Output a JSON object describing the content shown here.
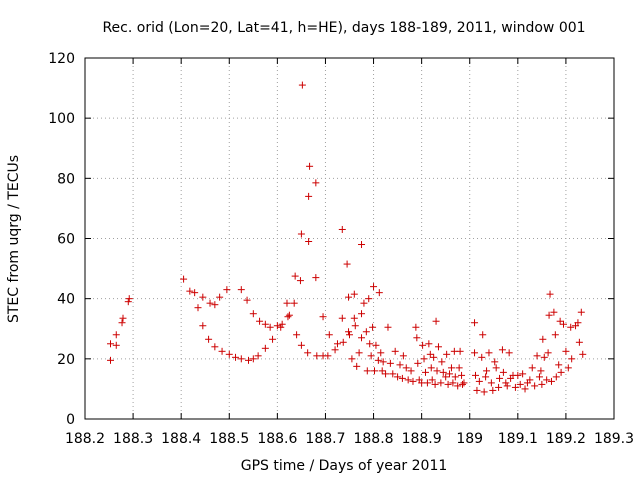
{
  "chart_data": {
    "type": "scatter",
    "title": "Rec. orid (Lon=20, Lat=41, h=HE), days 188-189, 2011, window 001",
    "xlabel": "GPS time / Days of year 2011",
    "ylabel": "STEC from uqrg / TECUs",
    "xlim": [
      188.2,
      189.3
    ],
    "ylim": [
      0,
      120
    ],
    "x_ticks": [
      188.2,
      188.3,
      188.4,
      188.5,
      188.6,
      188.7,
      188.8,
      188.9,
      189,
      189.1,
      189.2,
      189.3
    ],
    "x_tick_labels": [
      "188.2",
      "188.3",
      "188.4",
      "188.5",
      "188.6",
      "188.7",
      "188.8",
      "188.9",
      "189",
      "189.1",
      "189.2",
      "189.3"
    ],
    "y_ticks": [
      0,
      20,
      40,
      60,
      80,
      100,
      120
    ],
    "y_tick_labels": [
      "0",
      "20",
      "40",
      "60",
      "80",
      "100",
      "120"
    ],
    "grid": true,
    "marker": "+",
    "color": "#cc0000",
    "points": [
      [
        188.253,
        19.5
      ],
      [
        188.253,
        25
      ],
      [
        188.265,
        24.5
      ],
      [
        188.265,
        28
      ],
      [
        188.277,
        32
      ],
      [
        188.279,
        33.5
      ],
      [
        188.29,
        39
      ],
      [
        188.292,
        40
      ],
      [
        188.405,
        46.5
      ],
      [
        188.418,
        42.5
      ],
      [
        188.428,
        42
      ],
      [
        188.435,
        37
      ],
      [
        188.445,
        40.5
      ],
      [
        188.445,
        31
      ],
      [
        188.457,
        26.5
      ],
      [
        188.46,
        38.5
      ],
      [
        188.47,
        38
      ],
      [
        188.47,
        24
      ],
      [
        188.48,
        40.5
      ],
      [
        188.485,
        22.5
      ],
      [
        188.495,
        43
      ],
      [
        188.5,
        21.5
      ],
      [
        188.513,
        20.5
      ],
      [
        188.525,
        43
      ],
      [
        188.525,
        20
      ],
      [
        188.537,
        39.5
      ],
      [
        188.54,
        19.5
      ],
      [
        188.55,
        20
      ],
      [
        188.55,
        35
      ],
      [
        188.56,
        21
      ],
      [
        188.563,
        32.5
      ],
      [
        188.575,
        31.5
      ],
      [
        188.575,
        23.5
      ],
      [
        188.585,
        30.5
      ],
      [
        188.59,
        26.5
      ],
      [
        188.6,
        31
      ],
      [
        188.607,
        30.5
      ],
      [
        188.61,
        31.5
      ],
      [
        188.62,
        38.5
      ],
      [
        188.622,
        34
      ],
      [
        188.625,
        34.5
      ],
      [
        188.635,
        38.5
      ],
      [
        188.637,
        47.5
      ],
      [
        188.64,
        28
      ],
      [
        188.648,
        46
      ],
      [
        188.65,
        24.5
      ],
      [
        188.65,
        61.5
      ],
      [
        188.652,
        111
      ],
      [
        188.663,
        22
      ],
      [
        188.665,
        59
      ],
      [
        188.665,
        74
      ],
      [
        188.667,
        84
      ],
      [
        188.68,
        78.5
      ],
      [
        188.68,
        47
      ],
      [
        188.682,
        21
      ],
      [
        188.695,
        21
      ],
      [
        188.695,
        34
      ],
      [
        188.705,
        21
      ],
      [
        188.708,
        28
      ],
      [
        188.72,
        23
      ],
      [
        188.725,
        25
      ],
      [
        188.735,
        63
      ],
      [
        188.735,
        33.5
      ],
      [
        188.737,
        25.5
      ],
      [
        188.745,
        51.5
      ],
      [
        188.748,
        40.5
      ],
      [
        188.748,
        29
      ],
      [
        188.75,
        28
      ],
      [
        188.755,
        20
      ],
      [
        188.76,
        41.5
      ],
      [
        188.76,
        33.5
      ],
      [
        188.762,
        31
      ],
      [
        188.765,
        17.5
      ],
      [
        188.77,
        22
      ],
      [
        188.775,
        58
      ],
      [
        188.775,
        35
      ],
      [
        188.775,
        27
      ],
      [
        188.78,
        38.5
      ],
      [
        188.785,
        29
      ],
      [
        188.787,
        16
      ],
      [
        188.79,
        40
      ],
      [
        188.792,
        25
      ],
      [
        188.795,
        21
      ],
      [
        188.798,
        30.5
      ],
      [
        188.8,
        44
      ],
      [
        188.802,
        16
      ],
      [
        188.805,
        24.5
      ],
      [
        188.81,
        19.5
      ],
      [
        188.812,
        42
      ],
      [
        188.815,
        22
      ],
      [
        188.818,
        16
      ],
      [
        188.82,
        19
      ],
      [
        188.825,
        15
      ],
      [
        188.83,
        30.5
      ],
      [
        188.835,
        18.5
      ],
      [
        188.84,
        15
      ],
      [
        188.845,
        22.5
      ],
      [
        188.85,
        14
      ],
      [
        188.855,
        18
      ],
      [
        188.86,
        13.5
      ],
      [
        188.862,
        21
      ],
      [
        188.868,
        17
      ],
      [
        188.872,
        13
      ],
      [
        188.878,
        16
      ],
      [
        188.882,
        12.5
      ],
      [
        188.888,
        30.5
      ],
      [
        188.89,
        27
      ],
      [
        188.892,
        18.5
      ],
      [
        188.895,
        13
      ],
      [
        188.9,
        12
      ],
      [
        188.902,
        24.5
      ],
      [
        188.905,
        20
      ],
      [
        188.908,
        15.5
      ],
      [
        188.912,
        12
      ],
      [
        188.915,
        25
      ],
      [
        188.918,
        21.5
      ],
      [
        188.92,
        17
      ],
      [
        188.922,
        13
      ],
      [
        188.925,
        20.5
      ],
      [
        188.928,
        11.5
      ],
      [
        188.93,
        32.5
      ],
      [
        188.932,
        16
      ],
      [
        188.935,
        24
      ],
      [
        188.94,
        12
      ],
      [
        188.942,
        19
      ],
      [
        188.945,
        15.5
      ],
      [
        188.95,
        14
      ],
      [
        188.952,
        21.5
      ],
      [
        188.955,
        11.5
      ],
      [
        188.958,
        15
      ],
      [
        188.962,
        17
      ],
      [
        188.965,
        12
      ],
      [
        188.968,
        22.5
      ],
      [
        188.97,
        14
      ],
      [
        188.975,
        11
      ],
      [
        188.978,
        17
      ],
      [
        188.98,
        22.5
      ],
      [
        188.983,
        14.5
      ],
      [
        188.985,
        11.5
      ],
      [
        188.988,
        12
      ],
      [
        189.01,
        32
      ],
      [
        189.01,
        22
      ],
      [
        189.012,
        14.5
      ],
      [
        189.015,
        9.5
      ],
      [
        189.02,
        12.5
      ],
      [
        189.025,
        20.5
      ],
      [
        189.027,
        28
      ],
      [
        189.03,
        9
      ],
      [
        189.033,
        14
      ],
      [
        189.035,
        16
      ],
      [
        189.04,
        22
      ],
      [
        189.045,
        12
      ],
      [
        189.048,
        9.5
      ],
      [
        189.052,
        19
      ],
      [
        189.055,
        17
      ],
      [
        189.06,
        10.5
      ],
      [
        189.062,
        13.5
      ],
      [
        189.068,
        23
      ],
      [
        189.07,
        15.5
      ],
      [
        189.075,
        12
      ],
      [
        189.078,
        11
      ],
      [
        189.082,
        22
      ],
      [
        189.085,
        13.5
      ],
      [
        189.09,
        14.5
      ],
      [
        189.095,
        10.5
      ],
      [
        189.1,
        14.5
      ],
      [
        189.105,
        11.5
      ],
      [
        189.11,
        15
      ],
      [
        189.115,
        10
      ],
      [
        189.12,
        12
      ],
      [
        189.125,
        13
      ],
      [
        189.13,
        17
      ],
      [
        189.135,
        11
      ],
      [
        189.14,
        21
      ],
      [
        189.145,
        14
      ],
      [
        189.148,
        16
      ],
      [
        189.15,
        11.5
      ],
      [
        189.152,
        26.5
      ],
      [
        189.155,
        20.5
      ],
      [
        189.16,
        13
      ],
      [
        189.163,
        22
      ],
      [
        189.165,
        34.5
      ],
      [
        189.167,
        41.5
      ],
      [
        189.17,
        12.5
      ],
      [
        189.175,
        35.5
      ],
      [
        189.178,
        28
      ],
      [
        189.18,
        14
      ],
      [
        189.185,
        18
      ],
      [
        189.188,
        32.5
      ],
      [
        189.19,
        15.5
      ],
      [
        189.195,
        31.5
      ],
      [
        189.2,
        22.5
      ],
      [
        189.205,
        17
      ],
      [
        189.21,
        30.5
      ],
      [
        189.212,
        20
      ],
      [
        189.22,
        31
      ],
      [
        189.225,
        32
      ],
      [
        189.228,
        25.5
      ],
      [
        189.232,
        35.5
      ],
      [
        189.235,
        21.5
      ]
    ]
  }
}
